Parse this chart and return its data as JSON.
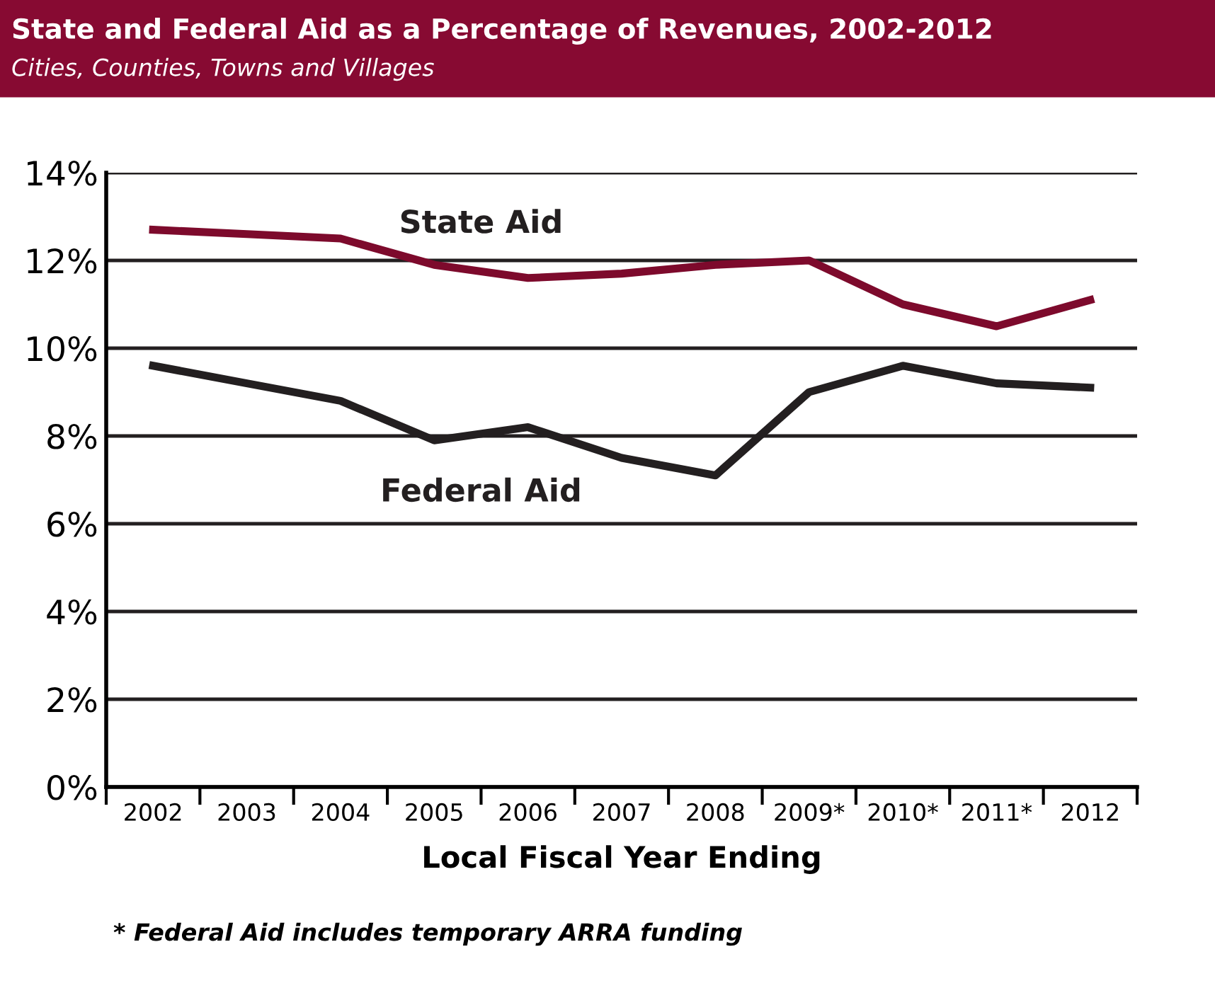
{
  "chart_data": {
    "type": "line",
    "title": "State and Federal Aid as a Percentage of Revenues, 2002-2012",
    "subtitle": "Cities, Counties, Towns and Villages",
    "xlabel": "Local Fiscal Year Ending",
    "categories": [
      "2002",
      "2003",
      "2004",
      "2005",
      "2006",
      "2007",
      "2008",
      "2009*",
      "2010*",
      "2011*",
      "2012"
    ],
    "series": [
      {
        "name": "State Aid",
        "color": "#7d0a2c",
        "values": [
          12.7,
          12.6,
          12.5,
          11.9,
          11.6,
          11.7,
          11.9,
          12.0,
          11.0,
          10.5,
          11.1
        ]
      },
      {
        "name": "Federal Aid",
        "color": "#231f20",
        "values": [
          9.6,
          9.2,
          8.8,
          7.9,
          8.2,
          7.5,
          7.1,
          9.0,
          9.6,
          9.2,
          9.1
        ]
      }
    ],
    "ylim": [
      0,
      14
    ],
    "yticks": [
      {
        "value": 0,
        "label": "0%"
      },
      {
        "value": 2,
        "label": "2%"
      },
      {
        "value": 4,
        "label": "4%"
      },
      {
        "value": 6,
        "label": "6%"
      },
      {
        "value": 8,
        "label": "8%"
      },
      {
        "value": 10,
        "label": "10%"
      },
      {
        "value": 12,
        "label": "12%"
      },
      {
        "value": 14,
        "label": "14%"
      }
    ],
    "grid": "y",
    "legend": false,
    "marker": "none",
    "line_style": "solid",
    "annotations": [
      "* Federal Aid includes temporary ARRA funding"
    ]
  }
}
